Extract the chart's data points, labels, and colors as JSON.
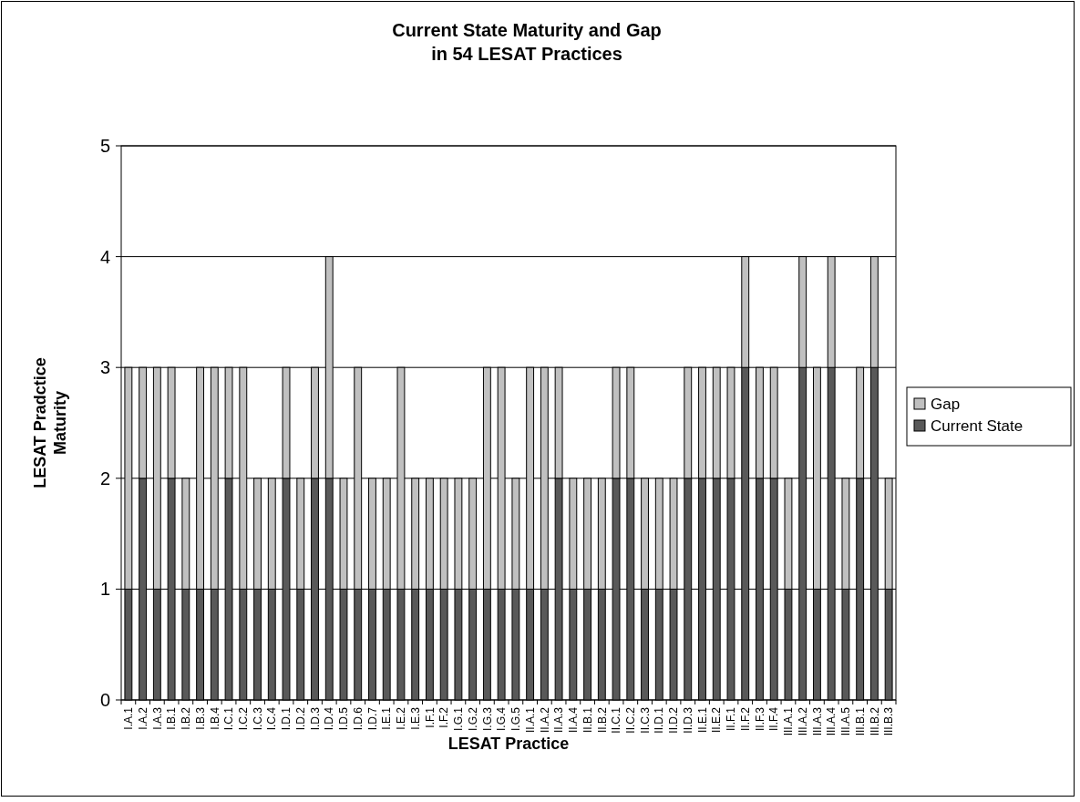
{
  "chart_data": {
    "type": "bar",
    "title": "Current State Maturity and Gap\nin 54 LESAT Practices",
    "xlabel": "LESAT Practice",
    "ylabel": "LESAT Pradctice Maturity",
    "categories": [
      "I.A.1",
      "I.A.2",
      "I.A.3",
      "I.B.1",
      "I.B.2",
      "I.B.3",
      "I.B.4",
      "I.C.1",
      "I.C.2",
      "I.C.3",
      "I.C.4",
      "I.D.1",
      "I.D.2",
      "I.D.3",
      "I.D.4",
      "I.D.5",
      "I.D.6",
      "I.D.7",
      "I.E.1",
      "I.E.2",
      "I.E.3",
      "I.F.1",
      "I.F.2",
      "I.G.1",
      "I.G.2",
      "I.G.3",
      "I.G.4",
      "I.G.5",
      "II.A.1",
      "II.A.2",
      "II.A.3",
      "II.A.4",
      "II.B.1",
      "II.B.2",
      "II.C.1",
      "II.C.2",
      "II.C.3",
      "II.D.1",
      "II.D.2",
      "II.D.3",
      "II.E.1",
      "II.E.2",
      "II.F.1",
      "II.F.2",
      "II.F.3",
      "II.F.4",
      "III.A.1",
      "III.A.2",
      "III.A.3",
      "III.A.4",
      "III.A.5",
      "III.B.1",
      "III.B.2",
      "III.B.3"
    ],
    "stacked": true,
    "series": [
      {
        "name": "Current State",
        "color": "#595959",
        "values": [
          1,
          2,
          1,
          2,
          1,
          1,
          1,
          2,
          1,
          1,
          1,
          2,
          1,
          2,
          2,
          1,
          1,
          1,
          1,
          1,
          1,
          1,
          1,
          1,
          1,
          1,
          1,
          1,
          1,
          1,
          2,
          1,
          1,
          1,
          2,
          2,
          1,
          1,
          1,
          2,
          2,
          2,
          2,
          3,
          2,
          2,
          1,
          3,
          1,
          3,
          1,
          2,
          3,
          1
        ]
      },
      {
        "name": "Gap",
        "color": "#c0c0c0",
        "values": [
          2,
          1,
          2,
          1,
          1,
          2,
          2,
          1,
          2,
          1,
          1,
          1,
          1,
          1,
          2,
          1,
          2,
          1,
          1,
          2,
          1,
          1,
          1,
          1,
          1,
          2,
          2,
          1,
          2,
          2,
          1,
          1,
          1,
          1,
          1,
          1,
          1,
          1,
          1,
          1,
          1,
          1,
          1,
          1,
          1,
          1,
          1,
          1,
          2,
          1,
          1,
          1,
          1,
          1
        ]
      }
    ],
    "ylim": [
      0,
      5
    ],
    "yticks": [
      0,
      1,
      2,
      3,
      4,
      5
    ],
    "grid": "y",
    "legend": "right"
  }
}
